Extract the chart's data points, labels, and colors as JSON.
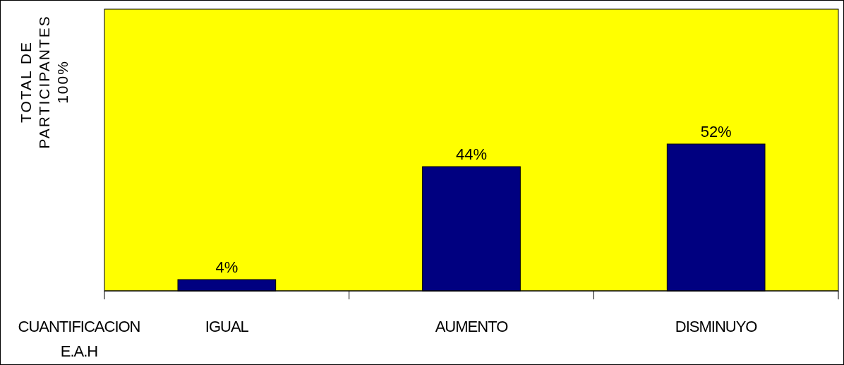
{
  "chart_data": {
    "type": "bar",
    "categories": [
      "IGUAL",
      "AUMENTO",
      "DISMINUYO"
    ],
    "values": [
      4,
      44,
      52
    ],
    "color": "#000080",
    "value_labels": [
      "4%",
      "44%",
      "52%"
    ],
    "xlabel": "CUANTIFICACION\nE.A.H",
    "ylabel": "TOTAL DE\nPARTICIPANTES\n100%",
    "tick_labels": "x"
  }
}
